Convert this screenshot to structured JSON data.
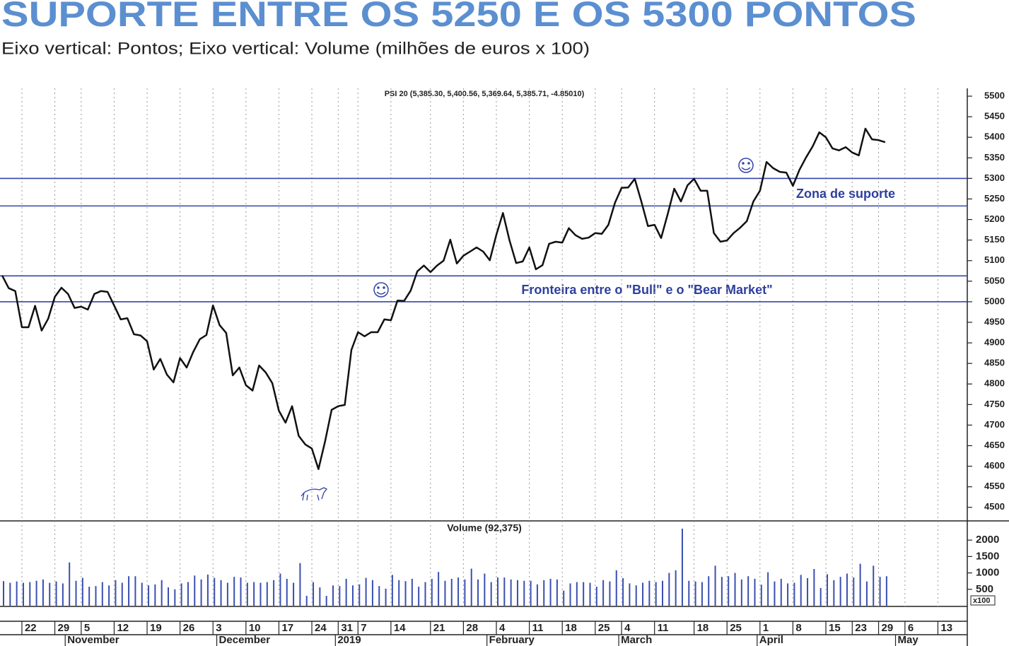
{
  "title": "SUPORTE ENTRE OS 5250 E OS 5300 PONTOS",
  "subtitle": "Eixo vertical: Pontos; Eixo vertical: Volume (milhões de euros x 100)",
  "chart_data": [
    {
      "type": "line",
      "title": "PSI 20 (5,385.30, 5,400.56, 5,369.64, 5,385.71, -4.85010)",
      "categories": [
        null,
        null,
        null,
        "22",
        null,
        null,
        null,
        null,
        "29",
        null,
        null,
        null,
        "5",
        null,
        null,
        null,
        null,
        "12",
        null,
        null,
        null,
        null,
        "19",
        null,
        null,
        null,
        null,
        "26",
        null,
        null,
        null,
        null,
        "3",
        null,
        null,
        null,
        null,
        "10",
        null,
        null,
        null,
        null,
        "17",
        null,
        null,
        null,
        null,
        "24",
        null,
        null,
        null,
        "31",
        null,
        null,
        "7",
        null,
        null,
        null,
        null,
        "14",
        null,
        null,
        null,
        null,
        null,
        "21",
        null,
        null,
        null,
        null,
        "28",
        null,
        null,
        null,
        null,
        "4",
        null,
        null,
        null,
        null,
        "11",
        null,
        null,
        null,
        null,
        "18",
        null,
        null,
        null,
        null,
        "25",
        null,
        null,
        null,
        "4",
        null,
        null,
        null,
        null,
        "11",
        null,
        null,
        null,
        null,
        null,
        "18",
        null,
        null,
        null,
        null,
        "25",
        null,
        null,
        null,
        null,
        "1",
        null,
        null,
        null,
        null,
        "8",
        null,
        null,
        null,
        null,
        "15",
        null,
        null,
        null,
        "23",
        null,
        null,
        null,
        "29",
        null,
        null,
        null,
        "6",
        null,
        null,
        null,
        null,
        "13",
        null,
        null,
        null
      ],
      "month_labels": [
        null,
        null,
        null,
        null,
        null,
        null,
        null,
        null,
        null,
        null,
        "November",
        null,
        null,
        null,
        null,
        null,
        null,
        null,
        null,
        null,
        null,
        null,
        null,
        null,
        null,
        null,
        null,
        null,
        null,
        null,
        null,
        null,
        null,
        "December",
        null,
        null,
        null,
        null,
        null,
        null,
        null,
        null,
        null,
        null,
        null,
        null,
        null,
        null,
        null,
        null,
        null,
        "2019",
        null,
        null,
        null,
        null,
        null,
        null,
        null,
        null,
        null,
        null,
        null,
        null,
        null,
        null,
        null,
        null,
        null,
        null,
        null,
        null,
        null,
        null,
        "February",
        null,
        null,
        null,
        null,
        null,
        null,
        null,
        null,
        null,
        null,
        null,
        null,
        null,
        null,
        null,
        null,
        null,
        null,
        null,
        "March",
        null,
        null,
        null,
        null,
        null,
        null,
        null,
        null,
        null,
        null,
        null,
        null,
        null,
        null,
        null,
        null,
        null,
        null,
        null,
        null,
        "April",
        null,
        null,
        null,
        null,
        null,
        null,
        null,
        null,
        null,
        null,
        null,
        null,
        null,
        null,
        null,
        null,
        null,
        null,
        null,
        null,
        "May",
        null,
        null,
        null,
        null,
        null,
        null,
        null,
        null,
        null
      ],
      "values": [
        5064,
        5033,
        5026,
        4938,
        4938,
        4990,
        4930,
        4959,
        5012,
        5034,
        5019,
        4985,
        4988,
        4981,
        5019,
        5026,
        5024,
        4991,
        4957,
        4960,
        4921,
        4918,
        4904,
        4835,
        4861,
        4823,
        4804,
        4863,
        4840,
        4878,
        4909,
        4919,
        4991,
        4943,
        4924,
        4821,
        4840,
        4797,
        4784,
        4845,
        4828,
        4802,
        4735,
        4706,
        4746,
        4674,
        4653,
        4643,
        4593,
        4660,
        4737,
        4746,
        4749,
        4883,
        4926,
        4916,
        4926,
        4926,
        4957,
        4955,
        5003,
        5002,
        5027,
        5074,
        5088,
        5072,
        5088,
        5100,
        5151,
        5093,
        5112,
        5122,
        5132,
        5122,
        5101,
        5163,
        5216,
        5149,
        5094,
        5098,
        5132,
        5079,
        5089,
        5141,
        5146,
        5144,
        5179,
        5162,
        5153,
        5156,
        5167,
        5165,
        5187,
        5241,
        5277,
        5278,
        5299,
        5244,
        5184,
        5187,
        5155,
        5213,
        5275,
        5244,
        5283,
        5299,
        5270,
        5270,
        5167,
        5146,
        5149,
        5167,
        5180,
        5196,
        5244,
        5270,
        5340,
        5325,
        5316,
        5314,
        5282,
        5321,
        5351,
        5378,
        5412,
        5400,
        5373,
        5368,
        5376,
        5363,
        5356,
        5421,
        5395,
        5393,
        5388,
        null,
        null,
        null,
        null,
        null,
        null,
        null,
        null,
        null,
        null,
        null
      ],
      "color": "#111111",
      "ylim": [
        4467,
        5519
      ],
      "yticks": [
        4500,
        4550,
        4600,
        4650,
        4700,
        4750,
        4800,
        4850,
        4900,
        4950,
        5000,
        5050,
        5100,
        5150,
        5200,
        5250,
        5300,
        5350,
        5400,
        5450,
        5500
      ],
      "reference_lines": [
        5300,
        5233,
        5063,
        5000
      ],
      "reference_color": "#3344aa",
      "annotations": [
        "Zona de suporte",
        "Fronteira entre o \"Bull\" e o \"Bear Market\""
      ],
      "grid": true
    },
    {
      "type": "bar",
      "title": "Volume (92,375)",
      "scale_label": "x100",
      "values": [
        750,
        700,
        740,
        700,
        720,
        760,
        800,
        700,
        740,
        680,
        1320,
        760,
        850,
        580,
        600,
        720,
        620,
        780,
        700,
        900,
        900,
        700,
        620,
        650,
        780,
        560,
        500,
        680,
        720,
        920,
        800,
        950,
        850,
        780,
        700,
        880,
        860,
        700,
        720,
        700,
        720,
        780,
        980,
        820,
        700,
        1300,
        300,
        720,
        560,
        300,
        620,
        600,
        820,
        620,
        650,
        850,
        780,
        600,
        520,
        940,
        780,
        750,
        820,
        580,
        720,
        820,
        1030,
        760,
        820,
        860,
        800,
        1130,
        800,
        980,
        720,
        860,
        860,
        800,
        780,
        760,
        760,
        650,
        780,
        820,
        800,
        460,
        680,
        720,
        720,
        700,
        580,
        780,
        740,
        1080,
        840,
        680,
        620,
        700,
        760,
        720,
        760,
        1000,
        1080,
        2350,
        760,
        740,
        720,
        900,
        1220,
        880,
        900,
        1000,
        800,
        900,
        820,
        640,
        1020,
        740,
        820,
        680,
        700,
        940,
        840,
        1120,
        540,
        960,
        780,
        880,
        980,
        860,
        1280,
        740,
        1220,
        880,
        900,
        null,
        null,
        null,
        null,
        null,
        null,
        null,
        null,
        null,
        null,
        null
      ],
      "color": "#3a4fb0",
      "ylim": [
        0,
        2500
      ],
      "yticks": [
        500,
        1000,
        1500,
        2000
      ]
    }
  ]
}
